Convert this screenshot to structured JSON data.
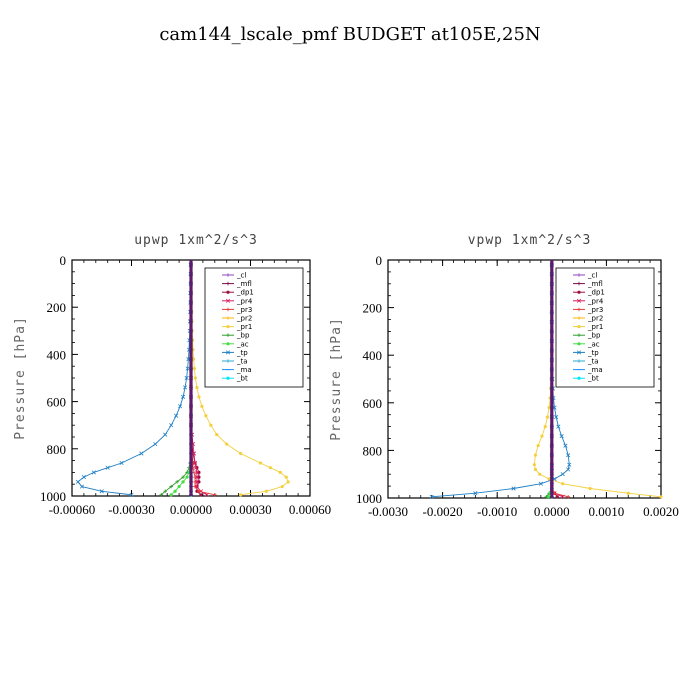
{
  "title": "cam144_lscale_pmf  BUDGET at105E,25N",
  "colors": {
    "cl": "#8e44c0",
    "mfl": "#7a0c4c",
    "dp1": "#9b1040",
    "pr4": "#d81b60",
    "pr3": "#e53935",
    "pr2": "#ffb300",
    "pr1": "#f4d03f",
    "bp": "#2e9e2e",
    "ac": "#44dd44",
    "tp": "#1f7fc4",
    "ta": "#2ba7d8",
    "ma": "#1e90ff",
    "bt": "#00e5ff"
  },
  "chart_data": [
    {
      "type": "line",
      "title": "upwp   1xm^2/s^3",
      "ylabel": "Pressure [hPa]",
      "xlim": [
        -0.0006,
        0.0006
      ],
      "ylim": [
        1000,
        0
      ],
      "xticks": [
        "-0.00060",
        "-0.00030",
        "0.00000",
        "0.00030",
        "0.00060"
      ],
      "xtick_values": [
        -0.0006,
        -0.0003,
        0,
        0.0003,
        0.0006
      ],
      "yticks": [
        "0",
        "200",
        "400",
        "600",
        "800",
        "1000"
      ],
      "ytick_values": [
        0,
        200,
        400,
        600,
        800,
        1000
      ],
      "legend": [
        "_cl",
        "_mfl",
        "_dp1",
        "_pr4",
        "_pr3",
        "_pr2",
        "_pr1",
        "_bp",
        "_ac",
        "_tp",
        "_ta",
        "_ma",
        "_bt"
      ],
      "legend_position": "top-right",
      "y": [
        20,
        60,
        100,
        140,
        180,
        220,
        260,
        300,
        340,
        380,
        420,
        460,
        500,
        540,
        580,
        620,
        660,
        700,
        740,
        780,
        820,
        860,
        880,
        900,
        920,
        940,
        960,
        980,
        995
      ],
      "series": [
        {
          "name": "_cl",
          "key": "cl",
          "values": [
            0,
            0,
            0,
            0,
            0,
            0,
            0,
            0,
            0,
            0,
            0,
            0,
            0,
            0,
            0,
            0,
            0,
            0,
            0,
            0,
            0,
            0,
            0,
            0,
            0,
            0,
            0,
            0,
            0
          ]
        },
        {
          "name": "_mfl",
          "key": "mfl",
          "values": [
            0,
            0,
            0,
            0,
            0,
            0,
            0,
            0,
            0,
            0,
            0,
            0,
            0,
            0,
            0,
            0,
            0,
            0,
            0,
            0,
            0,
            0,
            0,
            0,
            0,
            0,
            0,
            0,
            0
          ]
        },
        {
          "name": "_dp1",
          "key": "dp1",
          "values": [
            0,
            0,
            0,
            0,
            0,
            0,
            0,
            0,
            0,
            0,
            0,
            0,
            0,
            0,
            0,
            0,
            0,
            0,
            0,
            5e-06,
            1e-05,
            2e-05,
            3e-05,
            4e-05,
            4e-05,
            4e-05,
            3e-05,
            3e-05,
            5e-05
          ]
        },
        {
          "name": "_pr4",
          "key": "pr4",
          "values": [
            0,
            0,
            0,
            0,
            0,
            0,
            0,
            0,
            0,
            0,
            0,
            0,
            0,
            0,
            0,
            0,
            0,
            0,
            5e-06,
            1e-05,
            1.5e-05,
            2e-05,
            2.5e-05,
            3e-05,
            3e-05,
            3e-05,
            3e-05,
            5e-05,
            8e-05
          ]
        },
        {
          "name": "_pr3",
          "key": "pr3",
          "values": [
            0,
            0,
            0,
            0,
            0,
            0,
            0,
            0,
            0,
            0,
            0,
            0,
            0,
            0,
            0,
            0,
            0,
            0,
            0,
            0,
            5e-06,
            1e-05,
            1e-05,
            1.5e-05,
            2e-05,
            2e-05,
            2e-05,
            4e-05,
            0.00012
          ]
        },
        {
          "name": "_pr2",
          "key": "pr2",
          "values": [
            0,
            0,
            0,
            0,
            0,
            0,
            0,
            0,
            0,
            0,
            0,
            0,
            0,
            0,
            0,
            0,
            0,
            0,
            0,
            0,
            0,
            0,
            0,
            0,
            0,
            0,
            0,
            0,
            0
          ]
        },
        {
          "name": "_pr1",
          "key": "pr1",
          "values": [
            2e-06,
            2e-06,
            2e-06,
            3e-06,
            3e-06,
            4e-06,
            5e-06,
            6e-06,
            8e-06,
            1e-05,
            1.3e-05,
            1.7e-05,
            2.2e-05,
            3e-05,
            4e-05,
            5.5e-05,
            7.5e-05,
            0.0001,
            0.00013,
            0.00018,
            0.00025,
            0.00035,
            0.0004,
            0.00045,
            0.00048,
            0.00049,
            0.00046,
            0.00038,
            0.00025
          ]
        },
        {
          "name": "_bp",
          "key": "bp",
          "values": [
            0,
            0,
            0,
            0,
            0,
            0,
            0,
            0,
            0,
            0,
            0,
            0,
            0,
            0,
            0,
            0,
            0,
            0,
            0,
            0,
            0,
            -5e-06,
            -1e-05,
            -2e-05,
            -4e-05,
            -7e-05,
            -0.0001,
            -0.00013,
            -0.00015
          ]
        },
        {
          "name": "_ac",
          "key": "ac",
          "values": [
            0,
            0,
            0,
            0,
            0,
            0,
            0,
            0,
            0,
            0,
            0,
            0,
            0,
            0,
            0,
            0,
            0,
            0,
            0,
            0,
            0,
            -3e-06,
            -5e-06,
            -1e-05,
            -2e-05,
            -4e-05,
            -6e-05,
            -8e-05,
            -0.0001
          ]
        },
        {
          "name": "_tp",
          "key": "tp",
          "values": [
            -2e-06,
            -2e-06,
            -2e-06,
            -3e-06,
            -3e-06,
            -4e-06,
            -5e-06,
            -6e-06,
            -8e-06,
            -1e-05,
            -1.3e-05,
            -1.7e-05,
            -2.2e-05,
            -3e-05,
            -4e-05,
            -5.5e-05,
            -7.5e-05,
            -0.0001,
            -0.00013,
            -0.00018,
            -0.00025,
            -0.00035,
            -0.00042,
            -0.00049,
            -0.00054,
            -0.00057,
            -0.00055,
            -0.00045,
            -0.0003
          ]
        },
        {
          "name": "_ta",
          "key": "ta",
          "values": [
            0,
            0,
            0,
            0,
            0,
            0,
            0,
            0,
            0,
            0,
            0,
            0,
            0,
            0,
            0,
            0,
            0,
            0,
            0,
            0,
            0,
            0,
            0,
            0,
            0,
            0,
            0,
            0,
            0
          ]
        },
        {
          "name": "_ma",
          "key": "ma",
          "values": [
            0,
            0,
            0,
            0,
            0,
            0,
            0,
            0,
            0,
            0,
            0,
            0,
            0,
            0,
            0,
            0,
            0,
            0,
            0,
            0,
            0,
            0,
            0,
            0,
            0,
            0,
            0,
            0,
            0
          ]
        },
        {
          "name": "_bt",
          "key": "bt",
          "values": [
            0,
            0,
            0,
            0,
            0,
            0,
            0,
            0,
            0,
            0,
            0,
            0,
            0,
            0,
            0,
            0,
            0,
            0,
            0,
            0,
            0,
            0,
            0,
            0,
            0,
            0,
            0,
            0,
            0
          ]
        }
      ]
    },
    {
      "type": "line",
      "title": "vpwp   1xm^2/s^3",
      "ylabel": "Pressure [hPa]",
      "xlim": [
        -0.003,
        0.002
      ],
      "ylim": [
        1000,
        0
      ],
      "xticks": [
        "-0.0030",
        "-0.0020",
        "-0.0010",
        "0.0000",
        "0.0010",
        "0.0020"
      ],
      "xtick_values": [
        -0.003,
        -0.002,
        -0.001,
        0,
        0.001,
        0.002
      ],
      "yticks": [
        "0",
        "200",
        "400",
        "600",
        "800",
        "1000"
      ],
      "ytick_values": [
        0,
        200,
        400,
        600,
        800,
        1000
      ],
      "legend": [
        "_cl",
        "_mfl",
        "_dp1",
        "_pr4",
        "_pr3",
        "_pr2",
        "_pr1",
        "_bp",
        "_ac",
        "_tp",
        "_ta",
        "_ma",
        "_bt"
      ],
      "legend_position": "top-right",
      "y": [
        20,
        60,
        100,
        140,
        180,
        220,
        260,
        300,
        340,
        380,
        420,
        460,
        500,
        540,
        580,
        620,
        660,
        700,
        740,
        780,
        820,
        860,
        880,
        900,
        920,
        940,
        960,
        980,
        995
      ],
      "series": [
        {
          "name": "_cl",
          "key": "cl",
          "values": [
            0,
            0,
            0,
            0,
            0,
            0,
            0,
            0,
            0,
            0,
            0,
            0,
            0,
            0,
            0,
            0,
            0,
            0,
            0,
            0,
            0,
            0,
            0,
            0,
            0,
            0,
            0,
            0,
            0
          ]
        },
        {
          "name": "_mfl",
          "key": "mfl",
          "values": [
            0,
            0,
            0,
            0,
            0,
            0,
            0,
            0,
            0,
            0,
            0,
            0,
            0,
            0,
            0,
            0,
            0,
            0,
            0,
            0,
            0,
            0,
            0,
            0,
            0,
            0,
            0,
            0,
            0
          ]
        },
        {
          "name": "_dp1",
          "key": "dp1",
          "values": [
            0,
            0,
            0,
            0,
            0,
            0,
            0,
            0,
            0,
            0,
            0,
            0,
            0,
            0,
            0,
            0,
            0,
            0,
            0,
            0,
            0,
            0,
            0,
            0,
            0,
            0,
            0,
            5e-05,
            0.0001
          ]
        },
        {
          "name": "_pr4",
          "key": "pr4",
          "values": [
            0,
            0,
            0,
            0,
            0,
            0,
            0,
            0,
            0,
            0,
            0,
            0,
            0,
            0,
            0,
            0,
            0,
            0,
            0,
            0,
            0,
            0,
            0,
            0,
            0,
            0,
            0,
            5e-05,
            0.0002
          ]
        },
        {
          "name": "_pr3",
          "key": "pr3",
          "values": [
            0,
            0,
            0,
            0,
            0,
            0,
            0,
            0,
            0,
            0,
            0,
            0,
            0,
            0,
            0,
            0,
            0,
            0,
            0,
            0,
            0,
            0,
            0,
            0,
            0,
            0,
            0,
            5e-05,
            0.0003
          ]
        },
        {
          "name": "_pr2",
          "key": "pr2",
          "values": [
            0,
            0,
            0,
            0,
            0,
            0,
            0,
            0,
            0,
            0,
            0,
            0,
            0,
            0,
            0,
            0,
            0,
            0,
            0,
            0,
            0,
            0,
            0,
            0,
            0,
            0,
            0,
            0,
            0
          ]
        },
        {
          "name": "_pr1",
          "key": "pr1",
          "values": [
            0,
            0,
            0,
            0,
            0,
            0,
            0,
            0,
            0,
            0,
            0,
            0,
            -1e-05,
            -2e-05,
            -3e-05,
            -5e-05,
            -8e-05,
            -0.00012,
            -0.00018,
            -0.00025,
            -0.0003,
            -0.00032,
            -0.0003,
            -0.00022,
            -5e-05,
            0.0002,
            0.0007,
            0.0014,
            0.002
          ]
        },
        {
          "name": "_bp",
          "key": "bp",
          "values": [
            0,
            0,
            0,
            0,
            0,
            0,
            0,
            0,
            0,
            0,
            0,
            0,
            0,
            0,
            0,
            0,
            0,
            0,
            0,
            0,
            0,
            0,
            0,
            0,
            0,
            0,
            0,
            -5e-05,
            -0.0001
          ]
        },
        {
          "name": "_ac",
          "key": "ac",
          "values": [
            0,
            0,
            0,
            0,
            0,
            0,
            0,
            0,
            0,
            0,
            0,
            0,
            0,
            0,
            0,
            0,
            0,
            0,
            0,
            0,
            0,
            0,
            0,
            0,
            0,
            0,
            0,
            -3e-05,
            -6e-05
          ]
        },
        {
          "name": "_tp",
          "key": "tp",
          "values": [
            0,
            0,
            0,
            0,
            0,
            0,
            0,
            0,
            0,
            0,
            0,
            0,
            1e-05,
            2e-05,
            3e-05,
            5e-05,
            8e-05,
            0.00012,
            0.00018,
            0.00025,
            0.0003,
            0.00032,
            0.0003,
            0.0002,
            5e-05,
            -0.0002,
            -0.0007,
            -0.0014,
            -0.0022
          ]
        },
        {
          "name": "_ta",
          "key": "ta",
          "values": [
            0,
            0,
            0,
            0,
            0,
            0,
            0,
            0,
            0,
            0,
            0,
            0,
            0,
            0,
            0,
            0,
            0,
            0,
            0,
            0,
            0,
            0,
            0,
            0,
            0,
            0,
            0,
            0,
            0
          ]
        },
        {
          "name": "_ma",
          "key": "ma",
          "values": [
            0,
            0,
            0,
            0,
            0,
            0,
            0,
            0,
            0,
            0,
            0,
            0,
            0,
            0,
            0,
            0,
            0,
            0,
            0,
            0,
            0,
            0,
            0,
            0,
            0,
            0,
            0,
            0,
            0
          ]
        },
        {
          "name": "_bt",
          "key": "bt",
          "values": [
            0,
            0,
            0,
            0,
            0,
            0,
            0,
            0,
            0,
            0,
            0,
            0,
            0,
            0,
            0,
            0,
            0,
            0,
            0,
            0,
            0,
            0,
            0,
            0,
            0,
            0,
            0,
            0,
            0
          ]
        }
      ]
    }
  ]
}
